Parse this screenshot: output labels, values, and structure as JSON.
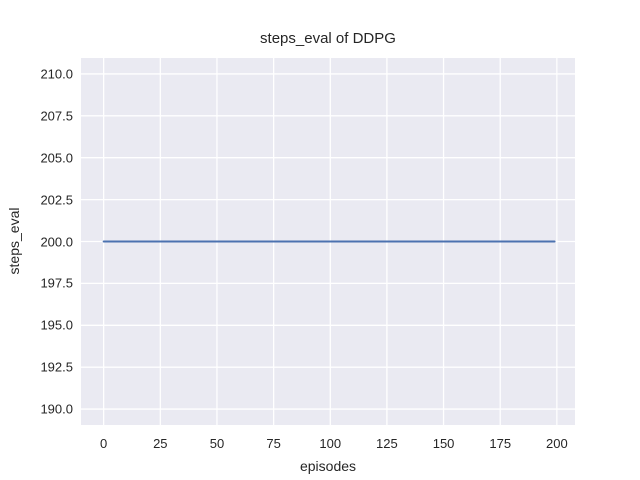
{
  "chart_data": {
    "type": "line",
    "title": "steps_eval of DDPG",
    "xlabel": "episodes",
    "ylabel": "steps_eval",
    "xlim": [
      -10,
      208
    ],
    "ylim": [
      189.05,
      210.95
    ],
    "xticks": [
      0,
      25,
      50,
      75,
      100,
      125,
      150,
      175,
      200
    ],
    "xtick_labels": [
      "0",
      "25",
      "50",
      "75",
      "100",
      "125",
      "150",
      "175",
      "200"
    ],
    "yticks": [
      190.0,
      192.5,
      195.0,
      197.5,
      200.0,
      202.5,
      205.0,
      207.5,
      210.0
    ],
    "ytick_labels": [
      "190.0",
      "192.5",
      "195.0",
      "197.5",
      "200.0",
      "202.5",
      "205.0",
      "207.5",
      "210.0"
    ],
    "grid": true,
    "legend_position": "none",
    "series": [
      {
        "name": "steps_eval",
        "color": "#4c72b0",
        "line_width": 2,
        "x": [
          0,
          199
        ],
        "y": [
          200.0,
          200.0
        ],
        "description": "constant value 200.0 across all episodes 0-199"
      }
    ],
    "style": {
      "figure_bg": "#ffffff",
      "plot_bg": "#eaeaf2",
      "grid_color": "#ffffff",
      "text_color": "#262626"
    }
  }
}
